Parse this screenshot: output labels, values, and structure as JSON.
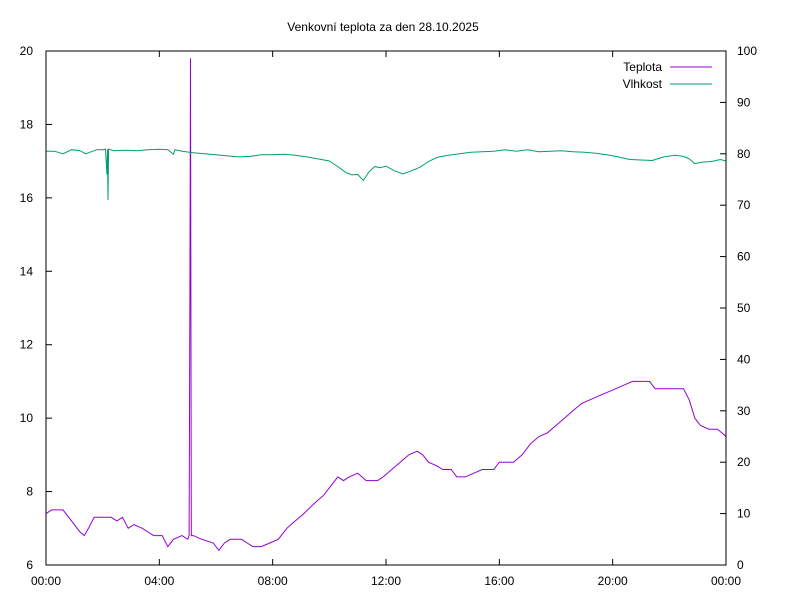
{
  "chart_data": {
    "type": "line",
    "title": "Venkovní teplota za den 28.10.2025",
    "x_ticks": [
      "00:00",
      "04:00",
      "08:00",
      "12:00",
      "16:00",
      "20:00",
      "00:00"
    ],
    "x_range_hours": [
      0,
      24
    ],
    "y_left": {
      "range": [
        6,
        20
      ],
      "ticks": [
        6,
        8,
        10,
        12,
        14,
        16,
        18,
        20
      ]
    },
    "y_right": {
      "range": [
        0,
        100
      ],
      "ticks": [
        0,
        10,
        20,
        30,
        40,
        50,
        60,
        70,
        80,
        90,
        100
      ]
    },
    "legend_position": "top-right",
    "grid": false,
    "series": [
      {
        "name": "Teplota",
        "axis": "left",
        "color": "#9400d3",
        "points": [
          [
            0.0,
            7.4
          ],
          [
            0.2,
            7.5
          ],
          [
            0.6,
            7.5
          ],
          [
            0.8,
            7.3
          ],
          [
            1.0,
            7.1
          ],
          [
            1.2,
            6.9
          ],
          [
            1.35,
            6.8
          ],
          [
            1.5,
            7.0
          ],
          [
            1.7,
            7.3
          ],
          [
            2.0,
            7.3
          ],
          [
            2.3,
            7.3
          ],
          [
            2.5,
            7.2
          ],
          [
            2.7,
            7.3
          ],
          [
            2.9,
            7.0
          ],
          [
            3.1,
            7.1
          ],
          [
            3.4,
            7.0
          ],
          [
            3.6,
            6.9
          ],
          [
            3.8,
            6.8
          ],
          [
            4.1,
            6.8
          ],
          [
            4.3,
            6.5
          ],
          [
            4.5,
            6.7
          ],
          [
            4.8,
            6.8
          ],
          [
            5.0,
            6.7
          ],
          [
            5.05,
            6.8
          ],
          [
            5.08,
            13.3
          ],
          [
            5.1,
            19.8
          ],
          [
            5.13,
            6.8
          ],
          [
            5.2,
            6.8
          ],
          [
            5.5,
            6.7
          ],
          [
            5.9,
            6.6
          ],
          [
            6.1,
            6.4
          ],
          [
            6.3,
            6.6
          ],
          [
            6.5,
            6.7
          ],
          [
            6.9,
            6.7
          ],
          [
            7.1,
            6.6
          ],
          [
            7.3,
            6.5
          ],
          [
            7.6,
            6.5
          ],
          [
            7.9,
            6.6
          ],
          [
            8.2,
            6.7
          ],
          [
            8.5,
            7.0
          ],
          [
            8.8,
            7.2
          ],
          [
            9.1,
            7.4
          ],
          [
            9.5,
            7.7
          ],
          [
            9.8,
            7.9
          ],
          [
            10.1,
            8.2
          ],
          [
            10.3,
            8.4
          ],
          [
            10.5,
            8.3
          ],
          [
            10.7,
            8.4
          ],
          [
            11.0,
            8.5
          ],
          [
            11.3,
            8.3
          ],
          [
            11.7,
            8.3
          ],
          [
            11.9,
            8.4
          ],
          [
            12.2,
            8.6
          ],
          [
            12.5,
            8.8
          ],
          [
            12.8,
            9.0
          ],
          [
            13.1,
            9.1
          ],
          [
            13.3,
            9.0
          ],
          [
            13.5,
            8.8
          ],
          [
            13.8,
            8.7
          ],
          [
            14.0,
            8.6
          ],
          [
            14.3,
            8.6
          ],
          [
            14.5,
            8.4
          ],
          [
            14.8,
            8.4
          ],
          [
            15.1,
            8.5
          ],
          [
            15.4,
            8.6
          ],
          [
            15.8,
            8.6
          ],
          [
            16.0,
            8.8
          ],
          [
            16.5,
            8.8
          ],
          [
            16.8,
            9.0
          ],
          [
            17.1,
            9.3
          ],
          [
            17.4,
            9.5
          ],
          [
            17.7,
            9.6
          ],
          [
            18.0,
            9.8
          ],
          [
            18.3,
            10.0
          ],
          [
            18.6,
            10.2
          ],
          [
            18.9,
            10.4
          ],
          [
            19.2,
            10.5
          ],
          [
            19.5,
            10.6
          ],
          [
            19.8,
            10.7
          ],
          [
            20.1,
            10.8
          ],
          [
            20.4,
            10.9
          ],
          [
            20.7,
            11.0
          ],
          [
            21.0,
            11.0
          ],
          [
            21.3,
            11.0
          ],
          [
            21.5,
            10.8
          ],
          [
            22.0,
            10.8
          ],
          [
            22.5,
            10.8
          ],
          [
            22.7,
            10.5
          ],
          [
            22.9,
            10.0
          ],
          [
            23.1,
            9.8
          ],
          [
            23.4,
            9.7
          ],
          [
            23.7,
            9.7
          ],
          [
            23.85,
            9.6
          ],
          [
            24.0,
            9.5
          ]
        ]
      },
      {
        "name": "Vlhkost",
        "axis": "right",
        "color": "#009e73",
        "points": [
          [
            0.0,
            80.5
          ],
          [
            0.3,
            80.5
          ],
          [
            0.6,
            80.0
          ],
          [
            0.9,
            80.8
          ],
          [
            1.2,
            80.6
          ],
          [
            1.4,
            80.0
          ],
          [
            1.6,
            80.4
          ],
          [
            1.8,
            80.8
          ],
          [
            2.0,
            80.8
          ],
          [
            2.1,
            80.9
          ],
          [
            2.15,
            76.0
          ],
          [
            2.17,
            80.9
          ],
          [
            2.19,
            71.0
          ],
          [
            2.21,
            80.9
          ],
          [
            2.4,
            80.6
          ],
          [
            2.8,
            80.7
          ],
          [
            3.2,
            80.6
          ],
          [
            3.6,
            80.8
          ],
          [
            4.0,
            80.9
          ],
          [
            4.3,
            80.8
          ],
          [
            4.5,
            79.9
          ],
          [
            4.55,
            80.8
          ],
          [
            4.8,
            80.5
          ],
          [
            5.2,
            80.2
          ],
          [
            5.6,
            80.0
          ],
          [
            6.0,
            79.8
          ],
          [
            6.4,
            79.6
          ],
          [
            6.8,
            79.4
          ],
          [
            7.2,
            79.5
          ],
          [
            7.6,
            79.8
          ],
          [
            8.0,
            79.8
          ],
          [
            8.4,
            79.9
          ],
          [
            8.8,
            79.7
          ],
          [
            9.2,
            79.4
          ],
          [
            9.6,
            79.0
          ],
          [
            10.0,
            78.6
          ],
          [
            10.3,
            77.5
          ],
          [
            10.6,
            76.3
          ],
          [
            10.8,
            75.9
          ],
          [
            11.0,
            76.0
          ],
          [
            11.2,
            74.8
          ],
          [
            11.4,
            76.5
          ],
          [
            11.6,
            77.5
          ],
          [
            11.8,
            77.3
          ],
          [
            12.0,
            77.6
          ],
          [
            12.3,
            76.7
          ],
          [
            12.6,
            76.1
          ],
          [
            12.9,
            76.7
          ],
          [
            13.2,
            77.4
          ],
          [
            13.5,
            78.5
          ],
          [
            13.8,
            79.3
          ],
          [
            14.2,
            79.7
          ],
          [
            14.6,
            80.0
          ],
          [
            15.0,
            80.3
          ],
          [
            15.4,
            80.4
          ],
          [
            15.8,
            80.5
          ],
          [
            16.2,
            80.8
          ],
          [
            16.6,
            80.5
          ],
          [
            17.0,
            80.8
          ],
          [
            17.4,
            80.4
          ],
          [
            17.8,
            80.5
          ],
          [
            18.2,
            80.6
          ],
          [
            18.6,
            80.4
          ],
          [
            19.0,
            80.3
          ],
          [
            19.4,
            80.1
          ],
          [
            19.8,
            79.8
          ],
          [
            20.2,
            79.4
          ],
          [
            20.6,
            78.9
          ],
          [
            21.0,
            78.8
          ],
          [
            21.4,
            78.7
          ],
          [
            21.8,
            79.4
          ],
          [
            22.2,
            79.7
          ],
          [
            22.5,
            79.5
          ],
          [
            22.7,
            79.0
          ],
          [
            22.9,
            78.1
          ],
          [
            23.2,
            78.4
          ],
          [
            23.5,
            78.5
          ],
          [
            23.8,
            78.9
          ],
          [
            24.0,
            78.6
          ]
        ]
      }
    ]
  }
}
